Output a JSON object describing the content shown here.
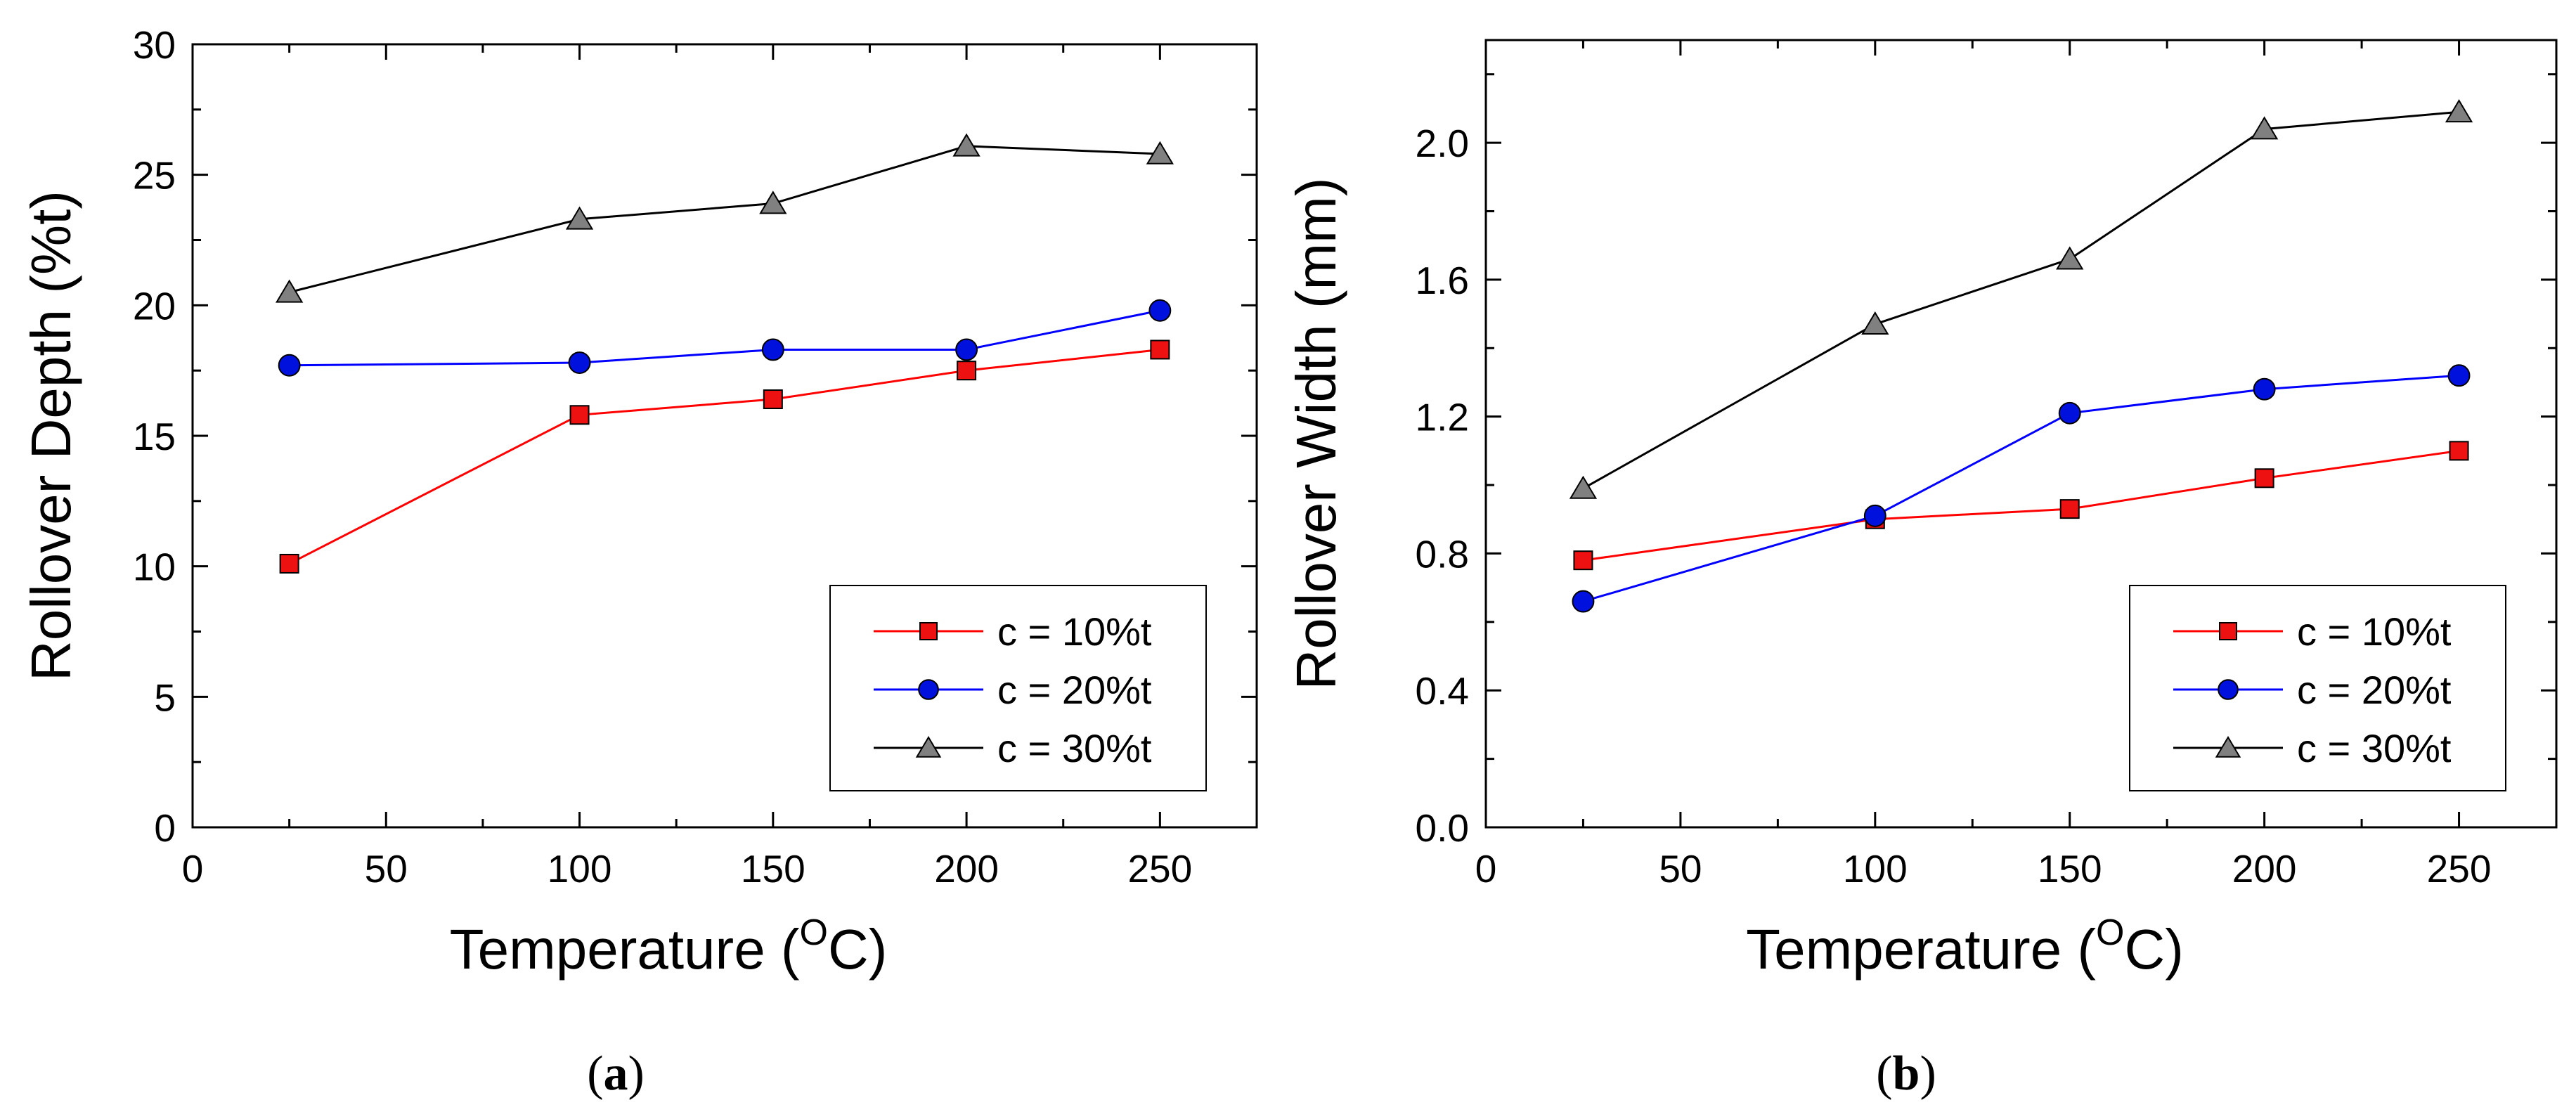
{
  "chart_data": [
    {
      "type": "line",
      "title": "",
      "panel_label": "a",
      "xlabel": "Temperature (",
      "xlabel_unit_sup": "O",
      "xlabel_unit": "C)",
      "ylabel": "Rollover Depth (%t)",
      "xlim": [
        0,
        275
      ],
      "ylim": [
        0,
        30
      ],
      "xticks": [
        0,
        50,
        100,
        150,
        200,
        250
      ],
      "xtick_labels": [
        "0",
        "50",
        "100",
        "150",
        "200",
        "250"
      ],
      "yticks": [
        0,
        5,
        10,
        15,
        20,
        25,
        30
      ],
      "ytick_labels": [
        "0",
        "5",
        "10",
        "15",
        "20",
        "25",
        "30"
      ],
      "x": [
        25,
        100,
        150,
        200,
        250
      ],
      "legend_position": "bottom-right",
      "series": [
        {
          "name": "c = 10%t",
          "color": "#ff0000",
          "fill": "#ee1111",
          "marker": "square",
          "values": [
            10.1,
            15.8,
            16.4,
            17.5,
            18.3
          ]
        },
        {
          "name": "c = 20%t",
          "color": "#0000ff",
          "fill": "#0011dd",
          "marker": "circle",
          "values": [
            17.7,
            17.8,
            18.3,
            18.3,
            19.8
          ]
        },
        {
          "name": "c = 30%t",
          "color": "#000000",
          "fill": "#808080",
          "marker": "triangle",
          "values": [
            20.5,
            23.3,
            23.9,
            26.1,
            25.8
          ]
        }
      ]
    },
    {
      "type": "line",
      "title": "",
      "panel_label": "b",
      "xlabel": "Temperature (",
      "xlabel_unit_sup": "O",
      "xlabel_unit": "C)",
      "ylabel": "Rollover Width (mm)",
      "xlim": [
        0,
        275
      ],
      "ylim": [
        0,
        2.3
      ],
      "xticks": [
        0,
        50,
        100,
        150,
        200,
        250
      ],
      "xtick_labels": [
        "0",
        "50",
        "100",
        "150",
        "200",
        "250"
      ],
      "yticks": [
        0,
        0.4,
        0.8,
        1.2,
        1.6,
        2.0
      ],
      "ytick_labels": [
        "0.0",
        "0.4",
        "0.8",
        "1.2",
        "1.6",
        "2.0"
      ],
      "x": [
        25,
        100,
        150,
        200,
        250
      ],
      "legend_position": "bottom-right",
      "series": [
        {
          "name": "c = 10%t",
          "color": "#ff0000",
          "fill": "#ee1111",
          "marker": "square",
          "values": [
            0.78,
            0.9,
            0.93,
            1.02,
            1.1
          ]
        },
        {
          "name": "c = 20%t",
          "color": "#0000ff",
          "fill": "#0011dd",
          "marker": "circle",
          "values": [
            0.66,
            0.91,
            1.21,
            1.28,
            1.32
          ]
        },
        {
          "name": "c = 30%t",
          "color": "#000000",
          "fill": "#808080",
          "marker": "triangle",
          "values": [
            0.99,
            1.47,
            1.66,
            2.04,
            2.09
          ]
        }
      ]
    }
  ]
}
